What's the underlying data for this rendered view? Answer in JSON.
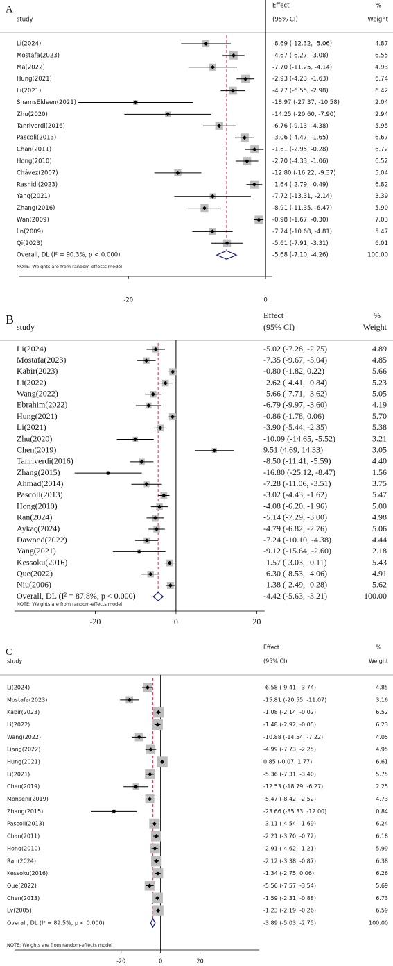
{
  "chart_data": [
    {
      "type": "forest",
      "panel": "A",
      "study_header": "study",
      "effect_header": "Effect",
      "ci_header": "(95% CI)",
      "pct_header": "%",
      "weight_header": "Weight",
      "categories": [
        "Li(2024)",
        "Mostafa(2023)",
        "Ma(2022)",
        "Hung(2021)",
        "Li(2021)",
        "ShamsEldeen(2021)",
        "Zhu(2020)",
        "Tanriverdi(2016)",
        "Pascoli(2013)",
        "Chan(2011)",
        "Hong(2010)",
        "Chávez(2007)",
        "Rashidi(2023)",
        "Yang(2021)",
        "Zhang(2016)",
        "Wan(2009)",
        "lin(2009)",
        "Qi(2023)"
      ],
      "values": [
        -8.69,
        -4.67,
        -7.7,
        -2.93,
        -4.77,
        -18.97,
        -14.25,
        -6.76,
        -3.06,
        -1.61,
        -2.7,
        -12.8,
        -1.64,
        -7.72,
        -8.91,
        -0.98,
        -7.74,
        -5.61
      ],
      "lower": [
        -12.32,
        -6.27,
        -11.25,
        -4.23,
        -6.55,
        -27.37,
        -20.6,
        -9.13,
        -4.47,
        -2.95,
        -4.33,
        -16.22,
        -2.79,
        -13.31,
        -11.35,
        -1.67,
        -10.68,
        -7.91
      ],
      "upper": [
        -5.06,
        -3.08,
        -4.14,
        -1.63,
        -2.98,
        -10.58,
        -7.9,
        -4.38,
        -1.65,
        -0.28,
        -1.06,
        -9.37,
        -0.49,
        -2.14,
        -6.47,
        -0.3,
        -4.81,
        -3.31
      ],
      "value_labels": [
        "-8.69 (-12.32, -5.06)",
        "-4.67 (-6.27, -3.08)",
        "-7.70 (-11.25, -4.14)",
        "-2.93 (-4.23, -1.63)",
        "-4.77 (-6.55, -2.98)",
        "-18.97 (-27.37, -10.58)",
        "-14.25 (-20.60, -7.90)",
        "-6.76 (-9.13, -4.38)",
        "-3.06 (-4.47, -1.65)",
        "-1.61 (-2.95, -0.28)",
        "-2.70 (-4.33, -1.06)",
        "-12.80 (-16.22, -9.37)",
        "-1.64 (-2.79, -0.49)",
        "-7.72 (-13.31, -2.14)",
        "-8.91 (-11.35, -6.47)",
        "-0.98 (-1.67, -0.30)",
        "-7.74 (-10.68, -4.81)",
        "-5.61 (-7.91, -3.31)"
      ],
      "weights": [
        4.87,
        6.55,
        4.93,
        6.74,
        6.42,
        2.04,
        2.94,
        5.95,
        6.67,
        6.72,
        6.52,
        5.04,
        6.82,
        3.39,
        5.9,
        7.03,
        5.47,
        6.01
      ],
      "weight_labels": [
        "4.87",
        "6.55",
        "4.93",
        "6.74",
        "6.42",
        "2.04",
        "2.94",
        "5.95",
        "6.67",
        "6.72",
        "6.52",
        "5.04",
        "6.82",
        "3.39",
        "5.90",
        "7.03",
        "5.47",
        "6.01"
      ],
      "overall": {
        "label": "Overall, DL (I² = 90.3%, p < 0.000)",
        "value": -5.68,
        "lower": -7.1,
        "upper": -4.26,
        "value_label": "-5.68 (-7.10, -4.26)",
        "weight": 100,
        "weight_label": "100.00"
      },
      "note": "NOTE: Weights are from random-effects model",
      "xlim": [
        -36,
        1
      ],
      "xticks": [
        -20,
        0
      ]
    },
    {
      "type": "forest",
      "panel": "B",
      "study_header": "study",
      "effect_header": "Effect",
      "ci_header": "(95% CI)",
      "pct_header": "%",
      "weight_header": "Weight",
      "categories": [
        "Li(2024)",
        "Mostafa(2023)",
        "Kabir(2023)",
        "Li(2022)",
        "Wang(2022)",
        "Ebrahim(2022)",
        "Hung(2021)",
        "Li(2021)",
        "Zhu(2020)",
        "Chen(2019)",
        "Tanriverdi(2016)",
        "Zhang(2015)",
        "Ahmad(2014)",
        "Pascoli(2013)",
        "Hong(2010)",
        "Ran(2024)",
        "Aykaç(2024)",
        "Dawood(2022)",
        "Yang(2021)",
        "Kessoku(2016)",
        "Que(2022)",
        "Niu(2006)"
      ],
      "values": [
        -5.02,
        -7.35,
        -0.8,
        -2.62,
        -5.66,
        -6.79,
        -0.86,
        -3.9,
        -10.09,
        9.51,
        -8.5,
        -16.8,
        -7.28,
        -3.02,
        -4.08,
        -5.14,
        -4.79,
        -7.24,
        -9.12,
        -1.57,
        -6.3,
        -1.38
      ],
      "lower": [
        -7.28,
        -9.67,
        -1.82,
        -4.41,
        -7.71,
        -9.97,
        -1.78,
        -5.44,
        -14.65,
        4.69,
        -11.41,
        -25.12,
        -11.06,
        -4.43,
        -6.2,
        -7.29,
        -6.82,
        -10.1,
        -15.64,
        -3.03,
        -8.53,
        -2.49
      ],
      "upper": [
        -2.75,
        -5.04,
        0.22,
        -0.84,
        -3.62,
        -3.6,
        0.06,
        -2.35,
        -5.52,
        14.33,
        -5.59,
        -8.47,
        -3.51,
        -1.62,
        -1.96,
        -3.0,
        -2.76,
        -4.38,
        -2.6,
        -0.11,
        -4.06,
        -0.28
      ],
      "value_labels": [
        "-5.02 (-7.28, -2.75)",
        "-7.35 (-9.67, -5.04)",
        "-0.80 (-1.82, 0.22)",
        "-2.62 (-4.41, -0.84)",
        "-5.66 (-7.71, -3.62)",
        "-6.79 (-9.97, -3.60)",
        "-0.86 (-1.78, 0.06)",
        "-3.90 (-5.44, -2.35)",
        "-10.09 (-14.65, -5.52)",
        "9.51 (4.69, 14.33)",
        "-8.50 (-11.41, -5.59)",
        "-16.80 (-25.12, -8.47)",
        "-7.28 (-11.06, -3.51)",
        "-3.02 (-4.43, -1.62)",
        "-4.08 (-6.20, -1.96)",
        "-5.14 (-7.29, -3.00)",
        "-4.79 (-6.82, -2.76)",
        "-7.24 (-10.10, -4.38)",
        "-9.12 (-15.64, -2.60)",
        "-1.57 (-3.03, -0.11)",
        "-6.30 (-8.53, -4.06)",
        "-1.38 (-2.49, -0.28)"
      ],
      "weights": [
        4.89,
        4.85,
        5.66,
        5.23,
        5.05,
        4.19,
        5.7,
        5.38,
        3.21,
        3.05,
        4.4,
        1.56,
        3.75,
        5.47,
        5.0,
        4.98,
        5.06,
        4.44,
        2.18,
        5.43,
        4.91,
        5.62
      ],
      "weight_labels": [
        "4.89",
        "4.85",
        "5.66",
        "5.23",
        "5.05",
        "4.19",
        "5.70",
        "5.38",
        "3.21",
        "3.05",
        "4.40",
        "1.56",
        "3.75",
        "5.47",
        "5.00",
        "4.98",
        "5.06",
        "4.44",
        "2.18",
        "5.43",
        "4.91",
        "5.62"
      ],
      "overall": {
        "label": "Overall, DL (I² = 87.8%, p < 0.000)",
        "value": -4.42,
        "lower": -5.63,
        "upper": -3.21,
        "value_label": "-4.42 (-5.63, -3.21)",
        "weight": 100,
        "weight_label": "100.00"
      },
      "note": "NOTE: Weights are from random-effects model",
      "xlim": [
        -40,
        22
      ],
      "xticks": [
        -20,
        0,
        20
      ]
    },
    {
      "type": "forest",
      "panel": "C",
      "study_header": "study",
      "effect_header": "Effect",
      "ci_header": "(95% CI)",
      "pct_header": "%",
      "weight_header": "Weight",
      "categories": [
        "Li(2024)",
        "Mostafa(2023)",
        "Kabir(2023)",
        "Li(2022)",
        "Wang(2022)",
        "Liang(2022)",
        "Hung(2021)",
        "Li(2021)",
        "Chen(2019)",
        "Mohseni(2019)",
        "Zhang(2015)",
        "Pascoli(2013)",
        "Chan(2011)",
        "Hong(2010)",
        "Ran(2024)",
        "Kessoku(2016)",
        "Que(2022)",
        "Chen(2013)",
        "Lv(2005)"
      ],
      "values": [
        -6.58,
        -15.81,
        -1.08,
        -1.48,
        -10.88,
        -4.99,
        0.85,
        -5.36,
        -12.53,
        -5.47,
        -23.66,
        -3.11,
        -2.21,
        -2.91,
        -2.12,
        -1.34,
        -5.56,
        -1.59,
        -1.23
      ],
      "lower": [
        -9.41,
        -20.55,
        -2.14,
        -2.92,
        -14.54,
        -7.73,
        -0.07,
        -7.31,
        -18.79,
        -8.42,
        -35.33,
        -4.54,
        -3.7,
        -4.62,
        -3.38,
        -2.75,
        -7.57,
        -2.31,
        -2.19
      ],
      "upper": [
        -3.74,
        -11.07,
        -0.02,
        -0.05,
        -7.22,
        -2.25,
        1.77,
        -3.4,
        -6.27,
        -2.52,
        -12.0,
        -1.69,
        -0.72,
        -1.21,
        -0.87,
        0.06,
        -3.54,
        -0.88,
        -0.26
      ],
      "value_labels": [
        "-6.58 (-9.41, -3.74)",
        "-15.81 (-20.55, -11.07)",
        "-1.08 (-2.14, -0.02)",
        "-1.48 (-2.92, -0.05)",
        "-10.88 (-14.54, -7.22)",
        "-4.99 (-7.73, -2.25)",
        "0.85 (-0.07, 1.77)",
        "-5.36 (-7.31, -3.40)",
        "-12.53 (-18.79, -6.27)",
        "-5.47 (-8.42, -2.52)",
        "-23.66 (-35.33, -12.00)",
        "-3.11 (-4.54, -1.69)",
        "-2.21 (-3.70, -0.72)",
        "-2.91 (-4.62, -1.21)",
        "-2.12 (-3.38, -0.87)",
        "-1.34 (-2.75, 0.06)",
        "-5.56 (-7.57, -3.54)",
        "-1.59 (-2.31, -0.88)",
        "-1.23 (-2.19, -0.26)"
      ],
      "weights": [
        4.85,
        3.16,
        6.52,
        6.23,
        4.05,
        4.95,
        6.61,
        5.75,
        2.25,
        4.73,
        0.84,
        6.24,
        6.18,
        5.99,
        6.38,
        6.26,
        5.69,
        6.73,
        6.59
      ],
      "weight_labels": [
        "4.85",
        "3.16",
        "6.52",
        "6.23",
        "4.05",
        "4.95",
        "6.61",
        "5.75",
        "2.25",
        "4.73",
        "0.84",
        "6.24",
        "6.18",
        "5.99",
        "6.38",
        "6.26",
        "5.69",
        "6.73",
        "6.59"
      ],
      "overall": {
        "label": "Overall, DL (I² = 89.5%, p < 0.000)",
        "value": -3.89,
        "lower": -5.03,
        "upper": -2.75,
        "value_label": "-3.89 (-5.03, -2.75)",
        "weight": 100,
        "weight_label": "100.00"
      },
      "note": "NOTE: Weights are from random-effects model",
      "xlim": [
        -74,
        50
      ],
      "xticks": [
        -20,
        0,
        20
      ]
    }
  ]
}
